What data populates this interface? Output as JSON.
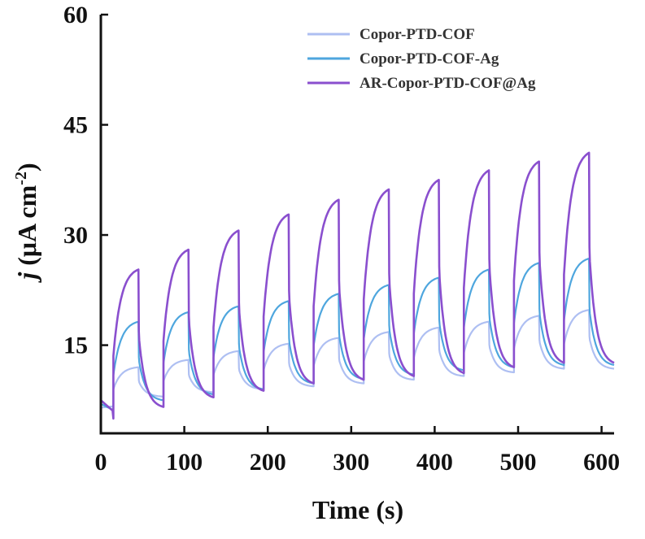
{
  "chart_data": {
    "type": "line",
    "xlabel": "Time (s)",
    "ylabel_italic": "j",
    "ylabel_unit": "(μA cm",
    "ylabel_sup": "-2",
    "ylabel_close": ")",
    "xlim": [
      0,
      615
    ],
    "ylim": [
      3,
      60
    ],
    "x_ticks": [
      0,
      100,
      200,
      300,
      400,
      500,
      600
    ],
    "y_ticks": [
      15,
      30,
      45,
      60
    ],
    "grid": false,
    "legend_position": "top-right",
    "cycle": {
      "on_start": 15,
      "period": 60,
      "light_on_duration": 30,
      "cycles": 10
    },
    "series": [
      {
        "name": "Copor-PTD-COF",
        "color": "#aebff2",
        "baseline_start": 6.5,
        "peaks": [
          12.0,
          13.0,
          14.2,
          15.2,
          16.0,
          16.8,
          17.4,
          18.2,
          19.0,
          19.8
        ],
        "troughs": [
          6.8,
          8.0,
          8.6,
          9.0,
          9.4,
          9.8,
          10.3,
          10.8,
          11.3,
          11.8
        ]
      },
      {
        "name": "Copor-PTD-COF-Ag",
        "color": "#4ea6de",
        "baseline_start": 7.0,
        "peaks": [
          18.2,
          19.5,
          20.3,
          21.0,
          22.0,
          23.2,
          24.2,
          25.3,
          26.2,
          26.8
        ],
        "troughs": [
          5.6,
          7.5,
          8.3,
          9.0,
          9.8,
          10.4,
          11.0,
          11.6,
          12.0,
          12.3
        ]
      },
      {
        "name": "AR-Copor-PTD-COF@Ag",
        "color": "#8a4fce",
        "baseline_start": 7.5,
        "peaks": [
          25.3,
          28.0,
          30.6,
          32.8,
          34.8,
          36.2,
          37.5,
          38.8,
          40.0,
          41.2
        ],
        "troughs": [
          5.0,
          6.6,
          7.9,
          8.8,
          9.8,
          10.3,
          10.8,
          11.2,
          12.0,
          12.6
        ]
      }
    ]
  }
}
